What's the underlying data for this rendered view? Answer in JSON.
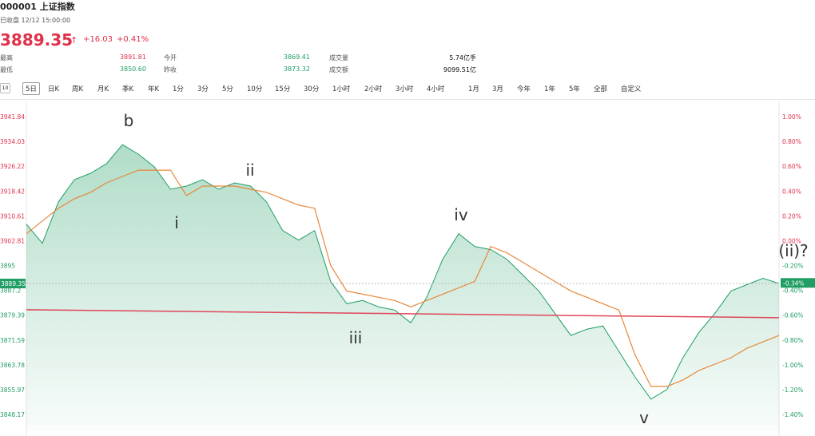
{
  "header": {
    "title": "000001 上证指数",
    "status": "已收盘 12/12 15:00:00",
    "price": "3889.35",
    "change": "+16.03",
    "change_pct": "+0.41%"
  },
  "stats": [
    [
      "最高",
      "3891.81",
      "今开",
      "3869.41",
      "成交量",
      "5.74亿手"
    ],
    [
      "最低",
      "3850.60",
      "昨收",
      "3873.32",
      "成交额",
      "9099.51亿"
    ]
  ],
  "tabs": [
    "5日",
    "日K",
    "周K",
    "月K",
    "季K",
    "年K",
    "1分",
    "3分",
    "5分",
    "10分",
    "15分",
    "30分",
    "1小时",
    "2小时",
    "3小时",
    "4小时",
    "1月",
    "3月",
    "今年",
    "1年",
    "5年",
    "全部",
    "自定义"
  ],
  "chart_data": {
    "type": "line",
    "ylim": [
      3842.9,
      3946.36
    ],
    "yticks": [
      3941.84,
      3934.03,
      3926.22,
      3918.42,
      3910.61,
      3902.81,
      3895.0,
      3887.2,
      3879.39,
      3871.59,
      3863.78,
      3855.97,
      3848.17
    ],
    "y2lim": [
      -1.535,
      1.116
    ],
    "y2ticks": [
      {
        "value": 1.0,
        "label": "1.00%"
      },
      {
        "value": 0.8,
        "label": "0.80%"
      },
      {
        "value": 0.6,
        "label": "0.60%"
      },
      {
        "value": 0.4,
        "label": "0.40%"
      },
      {
        "value": 0.2,
        "label": "0.20%"
      },
      {
        "value": 0,
        "label": "0.00%"
      },
      {
        "value": -0.2,
        "label": "-0.20%"
      },
      {
        "value": -0.4,
        "label": "-0.40%"
      },
      {
        "value": -0.6,
        "label": "-0.60%"
      },
      {
        "value": -0.8,
        "label": "-0.80%"
      },
      {
        "value": -1.0,
        "label": "-1.00%"
      },
      {
        "value": -1.2,
        "label": "-1.20%"
      },
      {
        "value": -1.4,
        "label": "-1.40%"
      }
    ],
    "series": [
      {
        "name": "price",
        "color": "#1f9d63",
        "values": [
          3908,
          3902,
          3915,
          3922,
          3924,
          3927,
          3933,
          3930,
          3926,
          3919,
          3920,
          3922,
          3919,
          3921,
          3920,
          3915,
          3906,
          3903,
          3906,
          3890,
          3883,
          3884,
          3882,
          3881,
          3877,
          3885,
          3897,
          3905,
          3901,
          3900,
          3897,
          3892,
          3887,
          3880,
          3873,
          3875,
          3876,
          3868,
          3860,
          3853,
          3856,
          3866,
          3874,
          3880,
          3887,
          3889,
          3891,
          3889.35
        ]
      },
      {
        "name": "average",
        "color": "#e8873a",
        "values": [
          3905,
          3909,
          3913,
          3916,
          3918,
          3921,
          3923,
          3925,
          3925,
          3925,
          3917,
          3920,
          3920,
          3920,
          3919,
          3918,
          3916,
          3914,
          3913,
          3895,
          3887,
          3886,
          3885,
          3884,
          3882,
          3884,
          3886,
          3888,
          3890,
          3901,
          3899,
          3896,
          3893,
          3890,
          3887,
          3885,
          3883,
          3881,
          3867,
          3857,
          3857,
          3859,
          3862,
          3864,
          3866,
          3869,
          3871,
          3873
        ]
      }
    ],
    "trendline": {
      "color": "#e0465a",
      "values": [
        3881.1,
        3878.6
      ]
    },
    "last_price": 3889.35,
    "last_change": {
      "value": -0.34,
      "label": "-0.34%"
    },
    "annotations": [
      "b",
      "i",
      "ii",
      "iii",
      "iv",
      "v",
      "(ii)?"
    ]
  }
}
